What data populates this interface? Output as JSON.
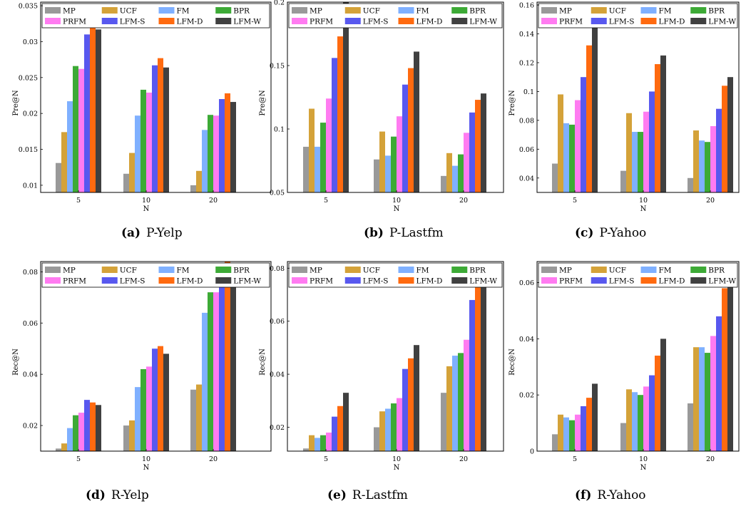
{
  "legend": [
    "MP",
    "UCF",
    "FM",
    "BPR",
    "PRFM",
    "LFM-S",
    "LFM-D",
    "LFM-W"
  ],
  "colors": [
    "#999999",
    "#d4a239",
    "#7fb0ff",
    "#3daa36",
    "#ff7bf1",
    "#5858ef",
    "#ff6a0f",
    "#404040"
  ],
  "chart_data": [
    {
      "type": "bar",
      "caption_label": "(a)",
      "caption_title": "P-Yelp",
      "xlabel": "N",
      "ylabel": "Pre@N",
      "categories": [
        "5",
        "10",
        "20"
      ],
      "ylim": [
        0.009,
        0.0355
      ],
      "yticks": [
        0.01,
        0.015,
        0.02,
        0.025,
        0.03,
        0.035
      ],
      "yticklabels": [
        "0.01",
        "0.015",
        "0.02",
        "0.025",
        "0.03",
        "0.035"
      ],
      "series": [
        {
          "name": "MP",
          "values": [
            0.0131,
            0.0116,
            0.01
          ]
        },
        {
          "name": "UCF",
          "values": [
            0.0174,
            0.0145,
            0.012
          ]
        },
        {
          "name": "FM",
          "values": [
            0.0217,
            0.0197,
            0.0177
          ]
        },
        {
          "name": "BPR",
          "values": [
            0.0266,
            0.0233,
            0.0198
          ]
        },
        {
          "name": "PRFM",
          "values": [
            0.0262,
            0.0229,
            0.0197
          ]
        },
        {
          "name": "LFM-S",
          "values": [
            0.031,
            0.0267,
            0.022
          ]
        },
        {
          "name": "LFM-D",
          "values": [
            0.033,
            0.0277,
            0.0228
          ]
        },
        {
          "name": "LFM-W",
          "values": [
            0.0317,
            0.0264,
            0.0216
          ]
        }
      ]
    },
    {
      "type": "bar",
      "caption_label": "(b)",
      "caption_title": "P-Lastfm",
      "xlabel": "N",
      "ylabel": "Pre@N",
      "categories": [
        "5",
        "10",
        "20"
      ],
      "ylim": [
        0.05,
        0.2
      ],
      "yticks": [
        0.05,
        0.1,
        0.15,
        0.2
      ],
      "yticklabels": [
        "0.05",
        "0.1",
        "0.15",
        "0.2"
      ],
      "series": [
        {
          "name": "MP",
          "values": [
            0.086,
            0.076,
            0.063
          ]
        },
        {
          "name": "UCF",
          "values": [
            0.116,
            0.098,
            0.081
          ]
        },
        {
          "name": "FM",
          "values": [
            0.086,
            0.079,
            0.071
          ]
        },
        {
          "name": "BPR",
          "values": [
            0.105,
            0.094,
            0.08
          ]
        },
        {
          "name": "PRFM",
          "values": [
            0.124,
            0.11,
            0.097
          ]
        },
        {
          "name": "LFM-S",
          "values": [
            0.156,
            0.135,
            0.113
          ]
        },
        {
          "name": "LFM-D",
          "values": [
            0.173,
            0.148,
            0.123
          ]
        },
        {
          "name": "LFM-W",
          "values": [
            0.2,
            0.161,
            0.128
          ]
        }
      ]
    },
    {
      "type": "bar",
      "caption_label": "(c)",
      "caption_title": "P-Yahoo",
      "xlabel": "N",
      "ylabel": "Pre@N",
      "categories": [
        "5",
        "10",
        "20"
      ],
      "ylim": [
        0.03,
        0.162
      ],
      "yticks": [
        0.04,
        0.06,
        0.08,
        0.1,
        0.12,
        0.14,
        0.16
      ],
      "yticklabels": [
        "0.04",
        "0.06",
        "0.08",
        "0.1",
        "0.12",
        "0.14",
        "0.16"
      ],
      "series": [
        {
          "name": "MP",
          "values": [
            0.05,
            0.045,
            0.04
          ]
        },
        {
          "name": "UCF",
          "values": [
            0.098,
            0.085,
            0.073
          ]
        },
        {
          "name": "FM",
          "values": [
            0.078,
            0.072,
            0.066
          ]
        },
        {
          "name": "BPR",
          "values": [
            0.077,
            0.072,
            0.065
          ]
        },
        {
          "name": "PRFM",
          "values": [
            0.094,
            0.086,
            0.076
          ]
        },
        {
          "name": "LFM-S",
          "values": [
            0.11,
            0.1,
            0.088
          ]
        },
        {
          "name": "LFM-D",
          "values": [
            0.132,
            0.119,
            0.104
          ]
        },
        {
          "name": "LFM-W",
          "values": [
            0.145,
            0.125,
            0.11
          ]
        }
      ]
    },
    {
      "type": "bar",
      "caption_label": "(d)",
      "caption_title": "R-Yelp",
      "xlabel": "N",
      "ylabel": "Rec@N",
      "categories": [
        "5",
        "10",
        "20"
      ],
      "ylim": [
        0.01,
        0.084
      ],
      "yticks": [
        0.02,
        0.04,
        0.06,
        0.08
      ],
      "yticklabels": [
        "0.02",
        "0.04",
        "0.06",
        "0.08"
      ],
      "series": [
        {
          "name": "MP",
          "values": [
            0.011,
            0.02,
            0.034
          ]
        },
        {
          "name": "UCF",
          "values": [
            0.013,
            0.022,
            0.036
          ]
        },
        {
          "name": "FM",
          "values": [
            0.019,
            0.035,
            0.064
          ]
        },
        {
          "name": "BPR",
          "values": [
            0.024,
            0.042,
            0.072
          ]
        },
        {
          "name": "PRFM",
          "values": [
            0.025,
            0.043,
            0.072
          ]
        },
        {
          "name": "LFM-S",
          "values": [
            0.03,
            0.05,
            0.081
          ]
        },
        {
          "name": "LFM-D",
          "values": [
            0.029,
            0.051,
            0.084
          ]
        },
        {
          "name": "LFM-W",
          "values": [
            0.028,
            0.048,
            0.076
          ]
        }
      ]
    },
    {
      "type": "bar",
      "caption_label": "(e)",
      "caption_title": "R-Lastfm",
      "xlabel": "N",
      "ylabel": "Rec@N",
      "categories": [
        "5",
        "10",
        "20"
      ],
      "ylim": [
        0.011,
        0.0825
      ],
      "yticks": [
        0.02,
        0.04,
        0.06,
        0.08
      ],
      "yticklabels": [
        "0.02",
        "0.04",
        "0.06",
        "0.08"
      ],
      "series": [
        {
          "name": "MP",
          "values": [
            0.012,
            0.02,
            0.033
          ]
        },
        {
          "name": "UCF",
          "values": [
            0.017,
            0.026,
            0.043
          ]
        },
        {
          "name": "FM",
          "values": [
            0.016,
            0.027,
            0.047
          ]
        },
        {
          "name": "BPR",
          "values": [
            0.017,
            0.029,
            0.048
          ]
        },
        {
          "name": "PRFM",
          "values": [
            0.018,
            0.031,
            0.053
          ]
        },
        {
          "name": "LFM-S",
          "values": [
            0.024,
            0.042,
            0.068
          ]
        },
        {
          "name": "LFM-D",
          "values": [
            0.028,
            0.046,
            0.074
          ]
        },
        {
          "name": "LFM-W",
          "values": [
            0.033,
            0.051,
            0.076
          ]
        }
      ]
    },
    {
      "type": "bar",
      "caption_label": "(f)",
      "caption_title": "R-Yahoo",
      "xlabel": "N",
      "ylabel": "Rec@N",
      "categories": [
        "5",
        "10",
        "20"
      ],
      "ylim": [
        0,
        0.0675
      ],
      "yticks": [
        0,
        0.02,
        0.04,
        0.06
      ],
      "yticklabels": [
        "0",
        "0.02",
        "0.04",
        "0.06"
      ],
      "series": [
        {
          "name": "MP",
          "values": [
            0.006,
            0.01,
            0.017
          ]
        },
        {
          "name": "UCF",
          "values": [
            0.013,
            0.022,
            0.037
          ]
        },
        {
          "name": "FM",
          "values": [
            0.012,
            0.021,
            0.037
          ]
        },
        {
          "name": "BPR",
          "values": [
            0.011,
            0.02,
            0.035
          ]
        },
        {
          "name": "PRFM",
          "values": [
            0.013,
            0.023,
            0.041
          ]
        },
        {
          "name": "LFM-S",
          "values": [
            0.016,
            0.027,
            0.048
          ]
        },
        {
          "name": "LFM-D",
          "values": [
            0.019,
            0.034,
            0.058
          ]
        },
        {
          "name": "LFM-W",
          "values": [
            0.024,
            0.04,
            0.067
          ]
        }
      ]
    }
  ]
}
